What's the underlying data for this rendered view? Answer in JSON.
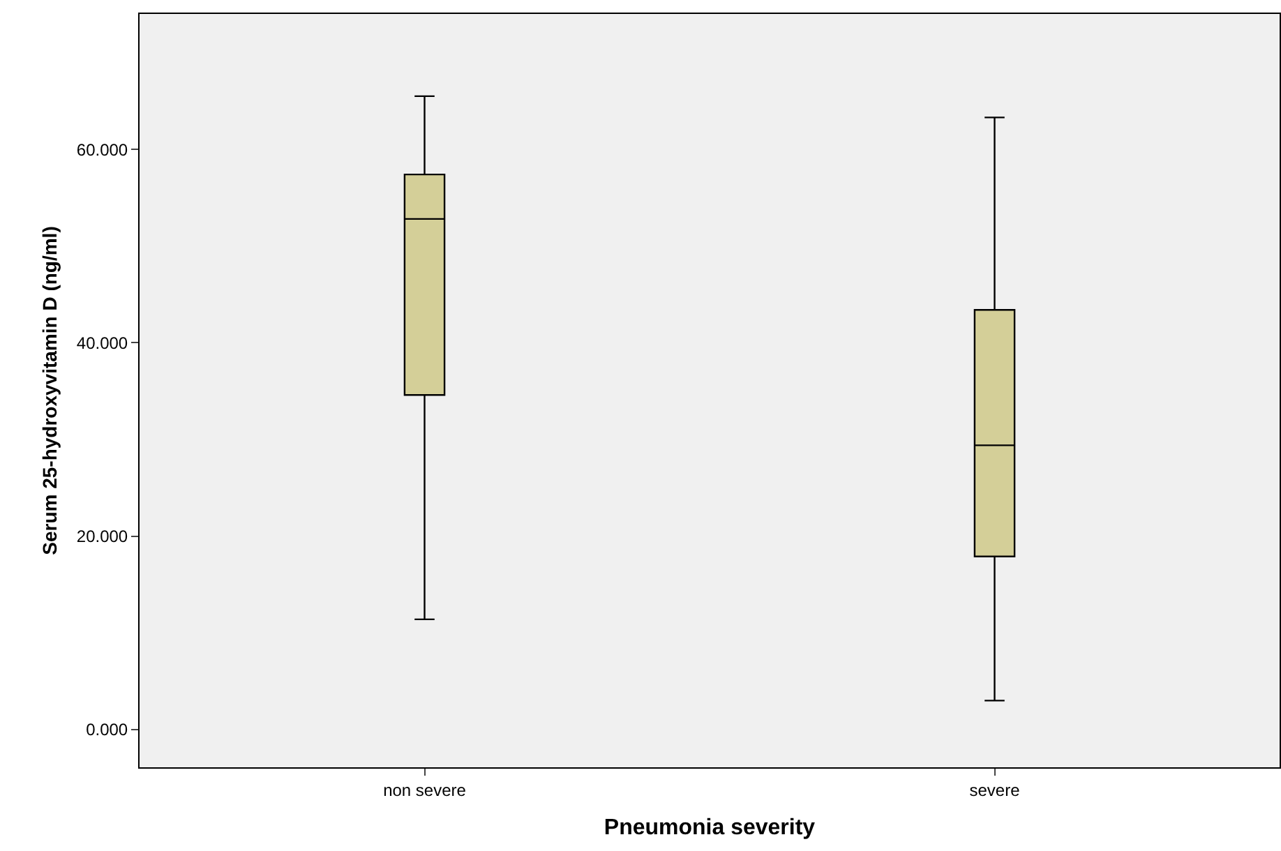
{
  "chart_data": {
    "type": "box",
    "xlabel": "Pneumonia severity",
    "ylabel": "Serum 25-hydroxyvitamin D (ng/ml)",
    "categories": [
      "non severe",
      "severe"
    ],
    "boxes": [
      {
        "low": 11.4,
        "q1": 34.6,
        "median": 52.8,
        "q3": 57.4,
        "high": 65.5
      },
      {
        "low": 3.0,
        "q1": 17.9,
        "median": 29.4,
        "q3": 43.4,
        "high": 63.3
      }
    ],
    "color": "#d4cf98",
    "ylim": [
      -3.9,
      74
    ],
    "yticks": [
      {
        "value": 0,
        "label": "0.000"
      },
      {
        "value": 20,
        "label": "20.000"
      },
      {
        "value": 40,
        "label": "40.000"
      },
      {
        "value": 60,
        "label": "60.000"
      }
    ],
    "grid": false,
    "legend": false
  }
}
